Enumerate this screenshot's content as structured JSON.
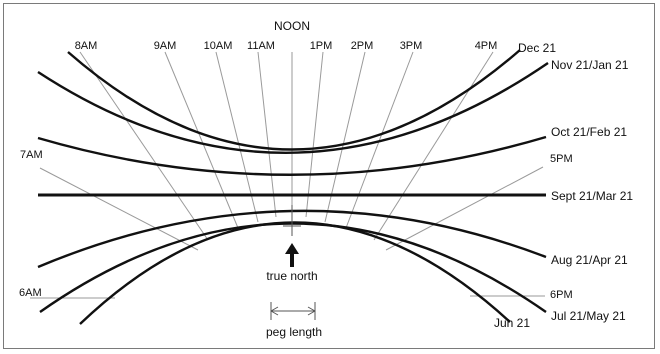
{
  "title": "NOON",
  "hours": {
    "h8": "8AM",
    "h9": "9AM",
    "h10": "10AM",
    "h11": "11AM",
    "h13": "1PM",
    "h14": "2PM",
    "h15": "3PM",
    "h16": "4PM",
    "h7": "7AM",
    "h17": "5PM",
    "h6": "6AM",
    "h18": "6PM"
  },
  "dates": {
    "dec": "Dec 21",
    "nov_jan": "Nov 21/Jan 21",
    "oct_feb": "Oct 21/Feb 21",
    "sep_mar": "Sept 21/Mar 21",
    "aug_apr": "Aug 21/Apr 21",
    "jul_may": "Jul 21/May 21",
    "jun": "Jun 21"
  },
  "annotations": {
    "true_north": "true north",
    "peg_length": "peg length"
  },
  "colors": {
    "curve": "#111111",
    "hour_line": "#9a9a9a",
    "frame": "#7a7a7a"
  }
}
